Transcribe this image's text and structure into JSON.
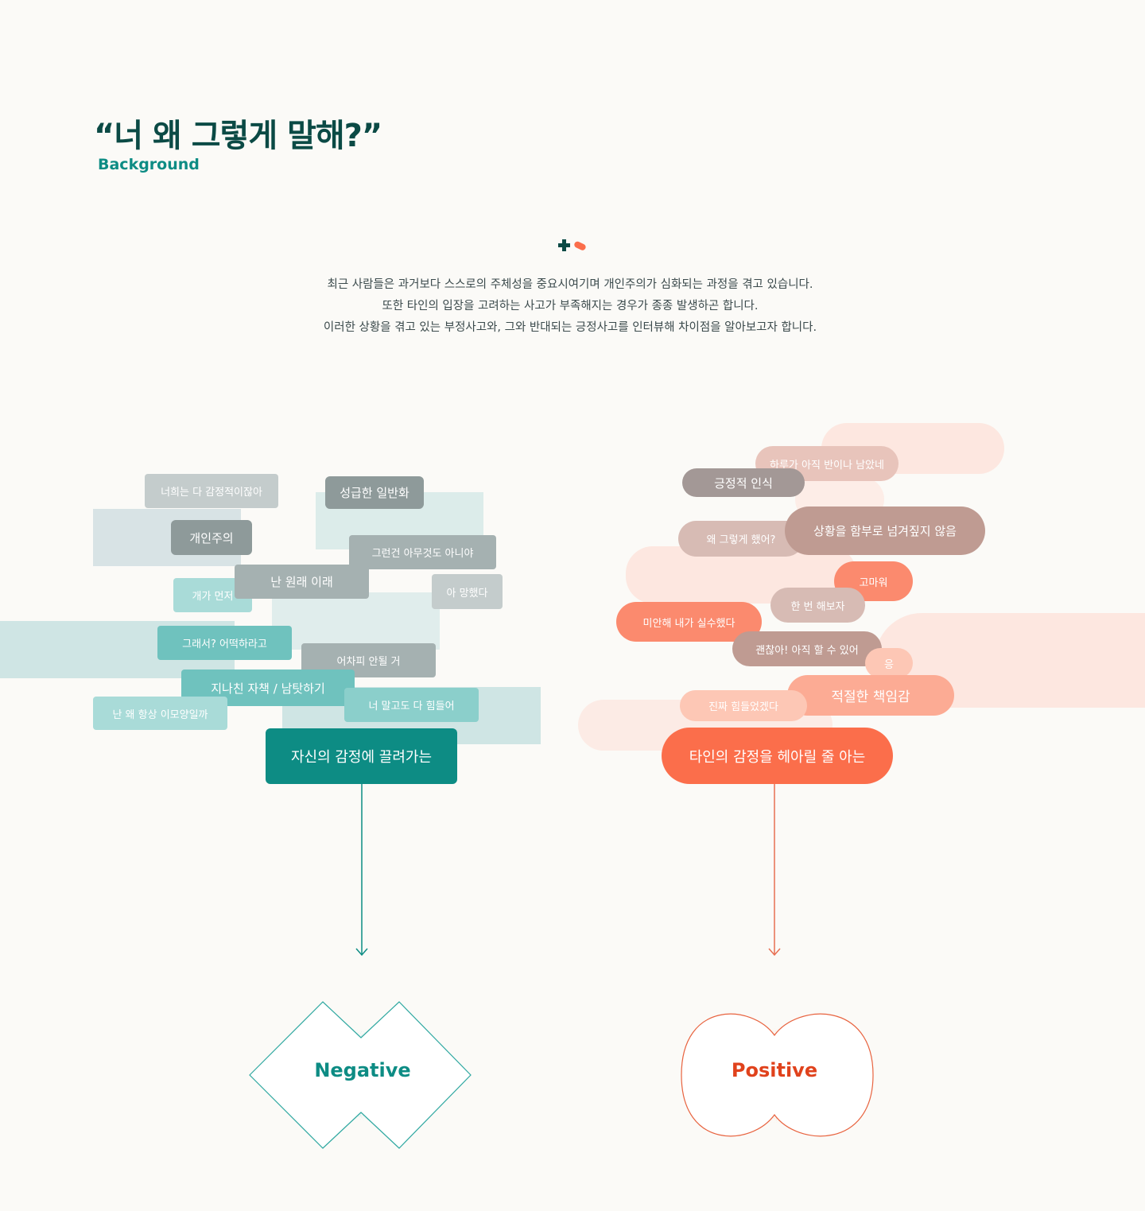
{
  "header": {
    "title": "“너 왜 그렇게 말해?”",
    "subtitle": "Background"
  },
  "intro": {
    "lines": [
      "최근 사람들은 과거보다 스스로의 주체성을 중요시여기며 개인주의가 심화되는 과정을 겪고 있습니다.",
      "또한 타인의 입장을 고려하는 사고가 부족해지는 경우가 종종 발생하곤 합니다.",
      "이러한 상황을 겪고 있는 부정사고와, 그와 반대되는 긍정사고를 인터뷰해 차이점을 알아보고자 합니다."
    ]
  },
  "colors": {
    "negative": "#0d8c84",
    "positive": "#fb6e4b",
    "title": "#0b4a45",
    "background": "#fbfaf7"
  },
  "negative": {
    "tags": [
      "너희는 다 감정적이잖아",
      "성급한 일반화",
      "개인주의",
      "그런건 아무것도 아니야",
      "개가 먼저",
      "난 원래 이래",
      "아 망했다",
      "그래서? 어떡하라고",
      "어차피 안될 거",
      "지나친 자책 / 남탓하기",
      "난 왜 항상 이모양일까",
      "너 말고도 다 힘들어"
    ],
    "main_label": "자신의 감정에 끌려가는",
    "result_label": "Negative"
  },
  "positive": {
    "tags": [
      "하루가 아직 반이나 남았네",
      "긍정적 인식",
      "왜 그렇게 했어?",
      "상황을 함부로 넘겨짚지 않음",
      "고마워",
      "한 번 해보자",
      "미안해 내가 실수했다",
      "괜찮아! 아직 할 수 있어",
      "응",
      "적절한 책임감",
      "진짜 힘들었겠다"
    ],
    "main_label": "타인의 감정을 헤아릴 줄 아는",
    "result_label": "Positive"
  }
}
